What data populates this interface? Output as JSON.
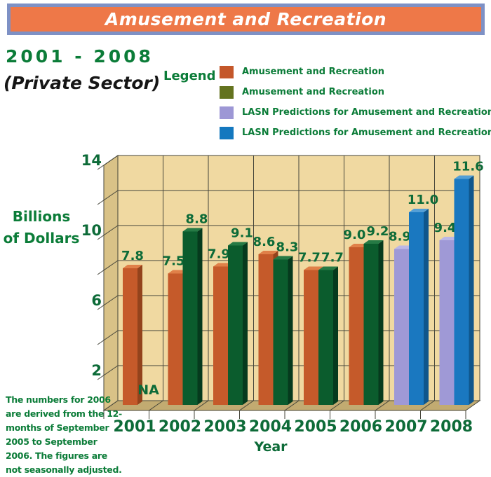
{
  "banner": {
    "title": "Amusement and Recreation",
    "bg_color": "#ee7848",
    "border_color": "#7e91c5"
  },
  "heading": {
    "range": "2001 - 2008",
    "sector": "(Private Sector)"
  },
  "legend": {
    "label": "Legend",
    "items": [
      {
        "swatch": "#c4572a",
        "text": "Amusement and Recreation"
      },
      {
        "swatch": "#64731f",
        "text": "Amusement and Recreation"
      },
      {
        "swatch": "#9d97d5",
        "text": "LASN Predictions for Amusement and Recreation"
      },
      {
        "swatch": "#1478bf",
        "text": "LASN Predictions for Amusement and Recreation"
      }
    ]
  },
  "axis": {
    "ylabel": "Billions of Dollars",
    "xlabel": "Year"
  },
  "footnote": "The numbers for 2006 are derived from the 12-months of September 2005 to September 2006. The figures are not seasonally adjusted.",
  "chart_data": {
    "type": "bar",
    "title": "Amusement and Recreation",
    "subtitle": "2001 - 2008 (Private Sector)",
    "xlabel": "Year",
    "ylabel": "Billions of Dollars",
    "categories": [
      "2001",
      "2002",
      "2003",
      "2004",
      "2005",
      "2006",
      "2007",
      "2008"
    ],
    "series": [
      {
        "name": "Amusement and Recreation",
        "colors": {
          "front": "#c55a2a",
          "side": "#93431c",
          "top": "#e08049"
        },
        "values": [
          7.8,
          7.5,
          7.9,
          8.6,
          7.7,
          9.0,
          null,
          null
        ]
      },
      {
        "name": "Amusement and Recreation",
        "colors": {
          "front": "#0b5c2d",
          "side": "#063a1d",
          "top": "#267a45"
        },
        "values": [
          null,
          8.8,
          9.1,
          8.3,
          7.7,
          9.2,
          null,
          null
        ]
      },
      {
        "name": "LASN Predictions for Amusement and Recreation",
        "colors": {
          "front": "#9f99d6",
          "side": "#756dae",
          "top": "#bcb7e6"
        },
        "values": [
          null,
          null,
          null,
          null,
          null,
          null,
          8.9,
          9.4
        ]
      },
      {
        "name": "LASN Predictions for Amusement and Recreation",
        "colors": {
          "front": "#1a78c0",
          "side": "#0f568c",
          "top": "#549fd6"
        },
        "values": [
          null,
          null,
          null,
          null,
          null,
          null,
          11.0,
          11.6
        ]
      }
    ],
    "na": {
      "year_index": 0,
      "label": "NA"
    },
    "value_labels": true,
    "ylim": [
      0,
      14
    ],
    "y_gridline_step": 2,
    "y_ticks_labeled": [
      2,
      6,
      10,
      14
    ],
    "grid": true,
    "legend_position": "top-right",
    "drawn_overrides": {
      "1:1": 9.9,
      "7:3": 12.9
    },
    "label_color": "#0d6b38",
    "wall_bg": "#f0d9a1",
    "wall_side": "#d9c287",
    "floor": "#c2ab71",
    "gridline_color": "#45453a"
  }
}
